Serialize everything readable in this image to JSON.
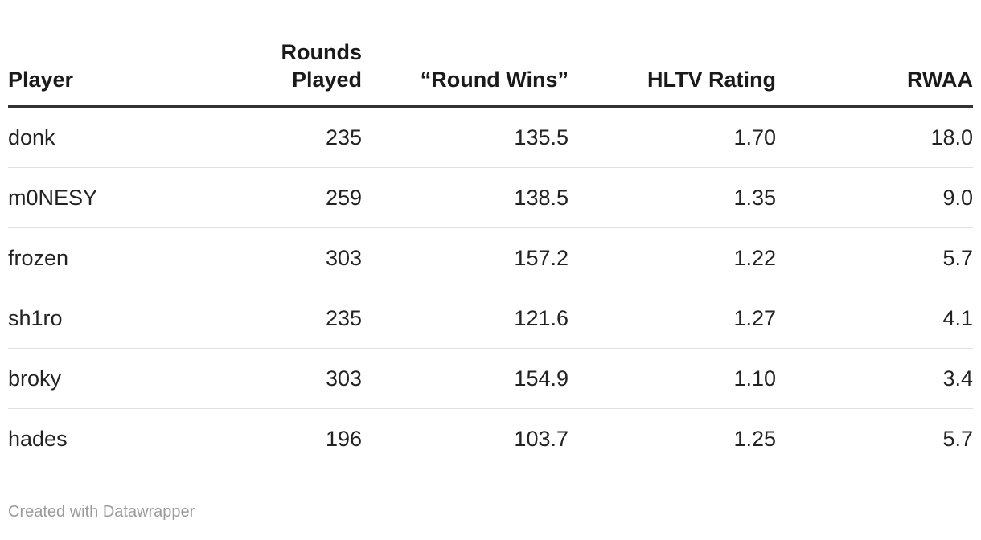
{
  "chart_data": {
    "type": "table",
    "columns": [
      "Player",
      "Rounds Played",
      "“Round Wins”",
      "HLTV Rating",
      "RWAA"
    ],
    "rows": [
      [
        "donk",
        "235",
        "135.5",
        "1.70",
        "18.0"
      ],
      [
        "m0NESY",
        "259",
        "138.5",
        "1.35",
        "9.0"
      ],
      [
        "frozen",
        "303",
        "157.2",
        "1.22",
        "5.7"
      ],
      [
        "sh1ro",
        "235",
        "121.6",
        "1.27",
        "4.1"
      ],
      [
        "broky",
        "303",
        "154.9",
        "1.10",
        "3.4"
      ],
      [
        "hades",
        "196",
        "103.7",
        "1.25",
        "5.7"
      ]
    ],
    "column_alignments": [
      "left",
      "right",
      "right",
      "right",
      "right"
    ],
    "grid": "horizontal-dividers",
    "title": ""
  },
  "footer": {
    "credit": "Created with Datawrapper"
  },
  "colors": {
    "background": "#ffffff",
    "header_text": "#1a1a1a",
    "body_text": "#222222",
    "header_border": "#333333",
    "row_divider": "#e0e0e0",
    "credit_text": "#9b9b9b"
  }
}
